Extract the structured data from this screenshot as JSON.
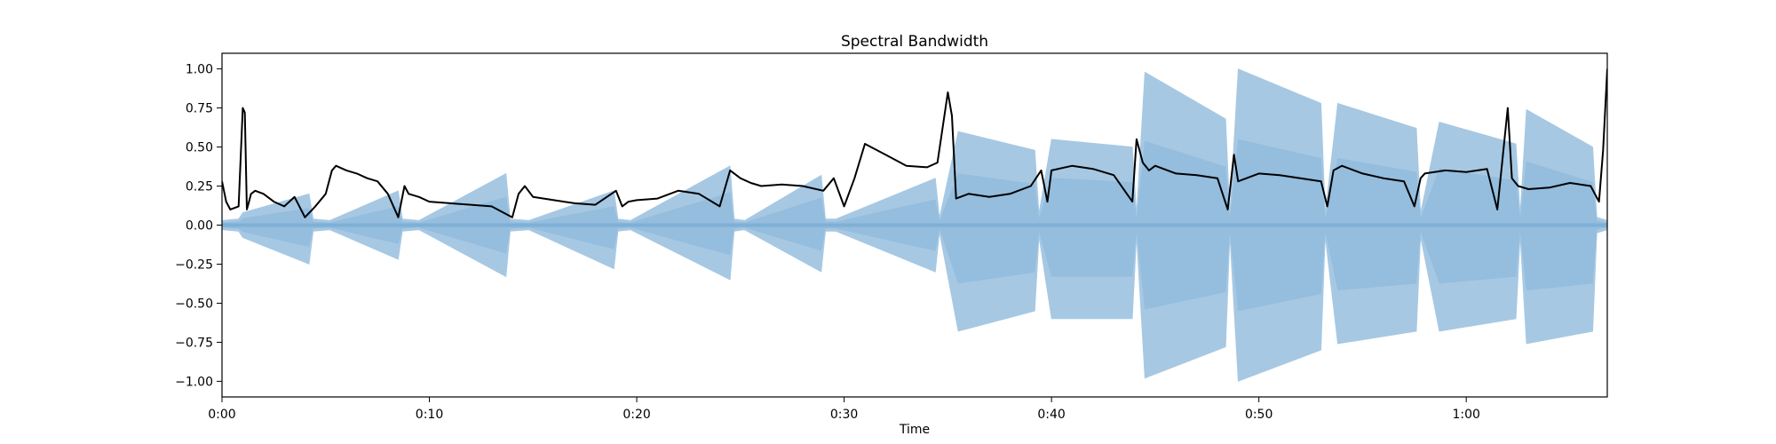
{
  "chart_data": {
    "type": "line",
    "title": "Spectral Bandwidth",
    "xlabel": "Time",
    "ylabel": "",
    "xlim": [
      0,
      66.8
    ],
    "ylim": [
      -1.1,
      1.1
    ],
    "grid": false,
    "legend": "none",
    "x_ticks": [
      {
        "value": 0,
        "label": "0:00"
      },
      {
        "value": 10,
        "label": "0:10"
      },
      {
        "value": 20,
        "label": "0:20"
      },
      {
        "value": 30,
        "label": "0:30"
      },
      {
        "value": 40,
        "label": "0:40"
      },
      {
        "value": 50,
        "label": "0:50"
      },
      {
        "value": 60,
        "label": "1:00"
      }
    ],
    "y_ticks": [
      {
        "value": 1.0,
        "label": "1.00"
      },
      {
        "value": 0.75,
        "label": "0.75"
      },
      {
        "value": 0.5,
        "label": "0.50"
      },
      {
        "value": 0.25,
        "label": "0.25"
      },
      {
        "value": 0.0,
        "label": "0.00"
      },
      {
        "value": -0.25,
        "label": "−0.25"
      },
      {
        "value": -0.5,
        "label": "−0.50"
      },
      {
        "value": -0.75,
        "label": "−0.75"
      },
      {
        "value": -1.0,
        "label": "−1.00"
      }
    ],
    "series": [
      {
        "kind": "waveform",
        "color": "#a6c8e3",
        "core_color": "#7fb0d6",
        "x": [
          0,
          0.8,
          1.0,
          4.2,
          4.4,
          5.2,
          8.5,
          8.7,
          9.5,
          13.7,
          13.9,
          14.8,
          18.9,
          19.1,
          19.7,
          24.5,
          24.7,
          25.2,
          28.9,
          29.1,
          29.6,
          34.4,
          34.6,
          35.5,
          39.2,
          39.4,
          40.0,
          43.9,
          44.1,
          44.5,
          48.4,
          48.6,
          49.0,
          53.0,
          53.2,
          53.8,
          57.6,
          57.8,
          58.7,
          62.4,
          62.6,
          62.9,
          66.1,
          66.3,
          66.8
        ],
        "upper": [
          0.03,
          0.04,
          0.08,
          0.2,
          0.04,
          0.03,
          0.22,
          0.04,
          0.03,
          0.33,
          0.04,
          0.03,
          0.22,
          0.04,
          0.03,
          0.38,
          0.04,
          0.03,
          0.32,
          0.04,
          0.04,
          0.3,
          0.05,
          0.6,
          0.48,
          0.08,
          0.55,
          0.5,
          0.08,
          0.98,
          0.68,
          0.08,
          1.0,
          0.78,
          0.08,
          0.78,
          0.62,
          0.08,
          0.66,
          0.52,
          0.08,
          0.74,
          0.5,
          0.05,
          0.03
        ],
        "lower": [
          -0.03,
          -0.04,
          -0.08,
          -0.25,
          -0.04,
          -0.03,
          -0.22,
          -0.04,
          -0.03,
          -0.33,
          -0.04,
          -0.03,
          -0.28,
          -0.04,
          -0.03,
          -0.35,
          -0.04,
          -0.03,
          -0.3,
          -0.04,
          -0.04,
          -0.3,
          -0.05,
          -0.68,
          -0.55,
          -0.08,
          -0.6,
          -0.6,
          -0.08,
          -0.98,
          -0.78,
          -0.08,
          -1.0,
          -0.8,
          -0.08,
          -0.76,
          -0.68,
          -0.08,
          -0.68,
          -0.6,
          -0.08,
          -0.76,
          -0.68,
          -0.05,
          -0.03
        ],
        "core_ratio": 0.55
      },
      {
        "kind": "line",
        "color": "#000000",
        "x": [
          0,
          0.2,
          0.4,
          0.8,
          1.0,
          1.1,
          1.2,
          1.3,
          1.4,
          1.6,
          2.0,
          2.5,
          3.0,
          3.5,
          4.0,
          4.5,
          5.0,
          5.3,
          5.5,
          6.0,
          6.5,
          7.0,
          7.5,
          8.0,
          8.5,
          8.8,
          9.0,
          9.5,
          10.0,
          11.0,
          12.0,
          13.0,
          14.0,
          14.3,
          14.6,
          15.0,
          16.0,
          17.0,
          18.0,
          19.0,
          19.3,
          19.6,
          20.0,
          21.0,
          22.0,
          23.0,
          24.0,
          24.5,
          25.0,
          25.5,
          26.0,
          27.0,
          28.0,
          29.0,
          29.5,
          30.0,
          30.5,
          31.0,
          32.0,
          33.0,
          34.0,
          34.5,
          35.0,
          35.2,
          35.4,
          36.0,
          37.0,
          38.0,
          39.0,
          39.5,
          39.8,
          40.0,
          41.0,
          42.0,
          43.0,
          43.9,
          44.1,
          44.4,
          44.7,
          45.0,
          46.0,
          47.0,
          48.0,
          48.5,
          48.8,
          49.0,
          50.0,
          51.0,
          52.0,
          53.0,
          53.3,
          53.6,
          54.0,
          55.0,
          56.0,
          57.0,
          57.5,
          57.8,
          58.0,
          59.0,
          60.0,
          61.0,
          61.5,
          62.0,
          62.2,
          62.5,
          63.0,
          64.0,
          65.0,
          66.0,
          66.4,
          66.6,
          66.8
        ],
        "y": [
          0.28,
          0.15,
          0.1,
          0.12,
          0.75,
          0.72,
          0.1,
          0.15,
          0.2,
          0.22,
          0.2,
          0.15,
          0.12,
          0.18,
          0.05,
          0.12,
          0.2,
          0.35,
          0.38,
          0.35,
          0.33,
          0.3,
          0.28,
          0.2,
          0.05,
          0.25,
          0.2,
          0.18,
          0.15,
          0.14,
          0.13,
          0.12,
          0.05,
          0.2,
          0.25,
          0.18,
          0.16,
          0.14,
          0.13,
          0.22,
          0.12,
          0.15,
          0.16,
          0.17,
          0.22,
          0.2,
          0.12,
          0.35,
          0.3,
          0.27,
          0.25,
          0.26,
          0.25,
          0.22,
          0.3,
          0.12,
          0.3,
          0.52,
          0.45,
          0.38,
          0.37,
          0.4,
          0.85,
          0.7,
          0.17,
          0.2,
          0.18,
          0.2,
          0.25,
          0.35,
          0.15,
          0.35,
          0.38,
          0.36,
          0.32,
          0.15,
          0.55,
          0.4,
          0.35,
          0.38,
          0.33,
          0.32,
          0.3,
          0.1,
          0.45,
          0.28,
          0.33,
          0.32,
          0.3,
          0.28,
          0.12,
          0.35,
          0.38,
          0.33,
          0.3,
          0.28,
          0.12,
          0.3,
          0.33,
          0.35,
          0.34,
          0.36,
          0.1,
          0.75,
          0.3,
          0.25,
          0.23,
          0.24,
          0.27,
          0.25,
          0.15,
          0.48,
          1.0
        ]
      }
    ]
  }
}
